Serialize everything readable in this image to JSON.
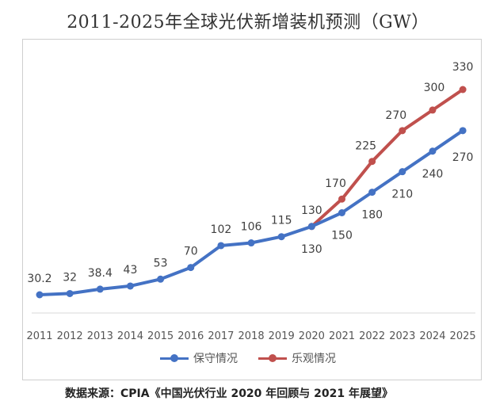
{
  "chart_data": {
    "type": "line",
    "title": "2011-2025年全球光伏新增装机预测（GW）",
    "categories": [
      "2011",
      "2012",
      "2013",
      "2014",
      "2015",
      "2016",
      "2017",
      "2018",
      "2019",
      "2020",
      "2021",
      "2022",
      "2023",
      "2024",
      "2025"
    ],
    "series": [
      {
        "name": "保守情况",
        "color": "#4472c4",
        "values": [
          30.2,
          32,
          38.4,
          43,
          53,
          70,
          102,
          106,
          115,
          130,
          150,
          180,
          210,
          240,
          270
        ],
        "labels": [
          "30.2",
          "32",
          "38.4",
          "43",
          "53",
          "70",
          "102",
          "106",
          "115",
          "130",
          "150",
          "180",
          "210",
          "240",
          "270"
        ]
      },
      {
        "name": "乐观情况",
        "color": "#c0504d",
        "values": [
          null,
          null,
          null,
          null,
          null,
          null,
          null,
          null,
          null,
          130,
          170,
          225,
          270,
          300,
          330
        ],
        "labels": [
          "",
          "",
          "",
          "",
          "",
          "",
          "",
          "",
          "",
          "",
          "170",
          "225",
          "270",
          "300",
          "330"
        ]
      }
    ],
    "ylim": [
      0,
      360
    ],
    "grid": false,
    "legend_position": "bottom",
    "xlabel": "",
    "ylabel": ""
  },
  "source_note": "数据来源：CPIA《中国光伏行业 2020 年回顾与 2021 年展望》"
}
